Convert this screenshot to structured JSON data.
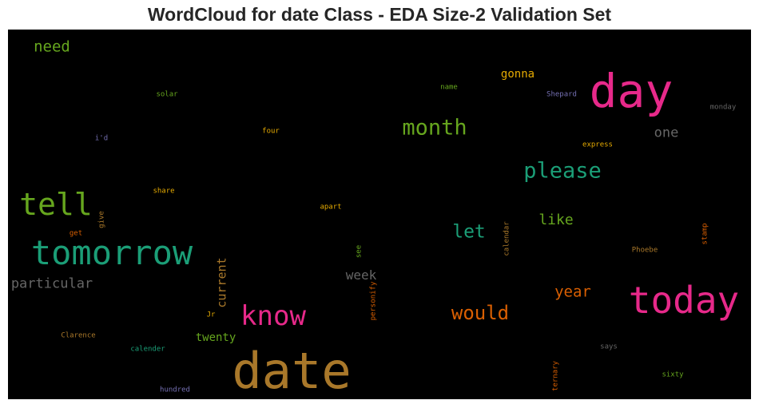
{
  "title": "WordCloud for date Class - EDA Size-2 Validation Set",
  "colors": {
    "background": "#000000",
    "title": "#262626"
  },
  "chart_data": {
    "type": "wordcloud",
    "words": [
      {
        "text": "date",
        "color": "#a9782a"
      },
      {
        "text": "day",
        "color": "#e7298a"
      },
      {
        "text": "today",
        "color": "#e7298a"
      },
      {
        "text": "tomorrow",
        "color": "#1b9e77"
      },
      {
        "text": "tell",
        "color": "#66a61e"
      },
      {
        "text": "know",
        "color": "#e7298a"
      },
      {
        "text": "month",
        "color": "#66a61e"
      },
      {
        "text": "please",
        "color": "#1b9e77"
      },
      {
        "text": "would",
        "color": "#d95f02"
      },
      {
        "text": "let",
        "color": "#1b9e77"
      },
      {
        "text": "year",
        "color": "#d95f02"
      },
      {
        "text": "particular",
        "color": "#666666"
      },
      {
        "text": "like",
        "color": "#66a61e"
      },
      {
        "text": "need",
        "color": "#66a61e"
      },
      {
        "text": "week",
        "color": "#666666"
      },
      {
        "text": "one",
        "color": "#666666"
      },
      {
        "text": "current",
        "color": "#a9782a"
      },
      {
        "text": "twenty",
        "color": "#66a61e"
      },
      {
        "text": "gonna",
        "color": "#e6ab02"
      },
      {
        "text": "solar",
        "color": "#66a61e"
      },
      {
        "text": "name",
        "color": "#66a61e"
      },
      {
        "text": "Shepard",
        "color": "#7570b3"
      },
      {
        "text": "monday",
        "color": "#666666"
      },
      {
        "text": "four",
        "color": "#e6ab02"
      },
      {
        "text": "i'd",
        "color": "#7570b3"
      },
      {
        "text": "express",
        "color": "#e6ab02"
      },
      {
        "text": "share",
        "color": "#e6ab02"
      },
      {
        "text": "apart",
        "color": "#e6ab02"
      },
      {
        "text": "give",
        "color": "#a9782a"
      },
      {
        "text": "get",
        "color": "#d95f02"
      },
      {
        "text": "see",
        "color": "#66a61e"
      },
      {
        "text": "personify",
        "color": "#d95f02"
      },
      {
        "text": "calendar",
        "color": "#a9782a"
      },
      {
        "text": "Phoebe",
        "color": "#a9782a"
      },
      {
        "text": "stamp",
        "color": "#d95f02"
      },
      {
        "text": "Jr",
        "color": "#e6ab02"
      },
      {
        "text": "Clarence",
        "color": "#a9782a"
      },
      {
        "text": "calender",
        "color": "#1b9e77"
      },
      {
        "text": "says",
        "color": "#666666"
      },
      {
        "text": "ternary",
        "color": "#d95f02"
      },
      {
        "text": "sixty",
        "color": "#66a61e"
      },
      {
        "text": "hundred",
        "color": "#7570b3"
      }
    ]
  }
}
